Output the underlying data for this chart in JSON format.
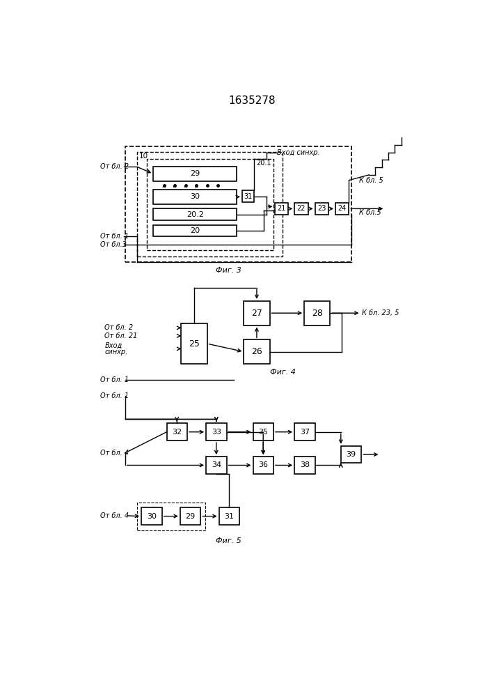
{
  "title": "1635278",
  "fig3_label": "Фиг. 3",
  "fig4_label": "Фиг. 4",
  "fig5_label": "Фиг. 5",
  "bg_color": "#ffffff",
  "line_color": "#000000",
  "box_color": "#ffffff",
  "font_size": 8,
  "title_font_size": 11,
  "label_font_size": 7
}
